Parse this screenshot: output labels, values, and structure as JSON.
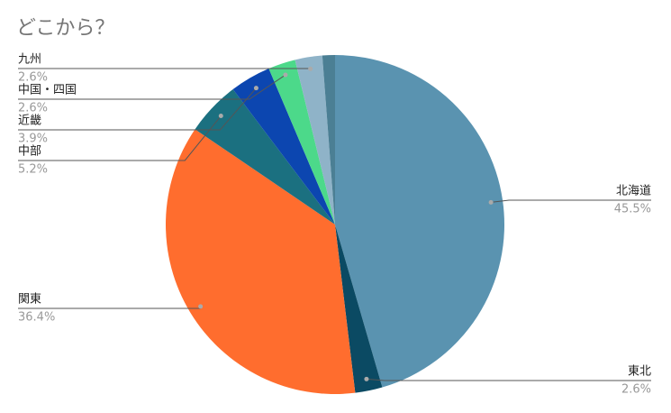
{
  "chart_data": {
    "type": "pie",
    "title": "どこから？",
    "categories": [
      "北海道",
      "東北",
      "関東",
      "中部",
      "近畿",
      "中国・四国",
      "九州",
      null
    ],
    "values": [
      45.5,
      2.6,
      36.4,
      5.2,
      3.9,
      2.6,
      2.6,
      1.2
    ],
    "value_labels": [
      "45.5%",
      "2.6%",
      "36.4%",
      "5.2%",
      "3.9%",
      "2.6%",
      "2.6%",
      null
    ],
    "colors": [
      "#5a93b0",
      "#0b4a63",
      "#ff6d2e",
      "#1b7080",
      "#0c46b0",
      "#4cd98a",
      "#8fb3c8",
      "#4b7f94"
    ]
  }
}
